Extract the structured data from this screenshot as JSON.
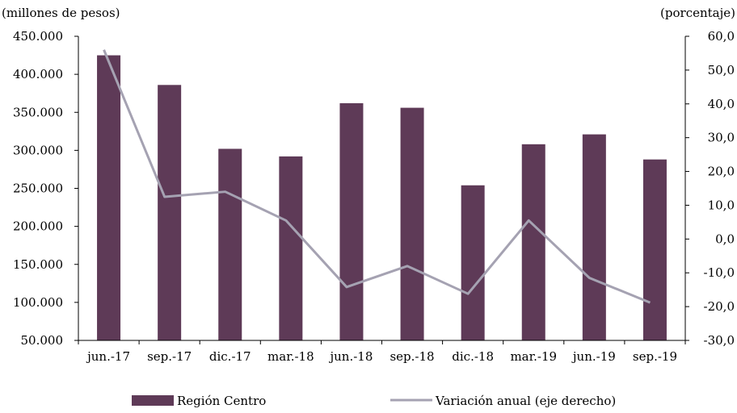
{
  "chart_data": {
    "type": "bar",
    "categories": [
      "jun.-17",
      "sep.-17",
      "dic.-17",
      "mar.-18",
      "jun.-18",
      "sep.-18",
      "dic.-18",
      "mar.-19",
      "jun.-19",
      "sep.-19"
    ],
    "series": [
      {
        "name": "Región Centro",
        "type": "bar",
        "axis": "left",
        "color": "#5e3a57",
        "values": [
          425000,
          386000,
          302000,
          292000,
          362000,
          356000,
          254000,
          308000,
          321000,
          288000
        ]
      },
      {
        "name": "Variación anual (eje derecho)",
        "type": "line",
        "axis": "right",
        "color": "#a5a2b2",
        "values": [
          56.0,
          12.5,
          14.0,
          5.5,
          -14.2,
          -8.0,
          -16.2,
          5.5,
          -11.5,
          -18.8
        ]
      }
    ],
    "left_axis": {
      "unit_label": "(millones de pesos)",
      "ylim": [
        50000,
        450000
      ],
      "ticks": [
        "450.000",
        "400.000",
        "350.000",
        "300.000",
        "250.000",
        "200.000",
        "150.000",
        "100.000",
        "50.000"
      ]
    },
    "right_axis": {
      "unit_label": "(porcentaje)",
      "ylim": [
        -30,
        60
      ],
      "ticks": [
        "60,0",
        "50,0",
        "40,0",
        "30,0",
        "20,0",
        "10,0",
        "0,0",
        "-10,0",
        "-20,0",
        "-30,0"
      ]
    },
    "grid": false,
    "legend": "bottom"
  }
}
